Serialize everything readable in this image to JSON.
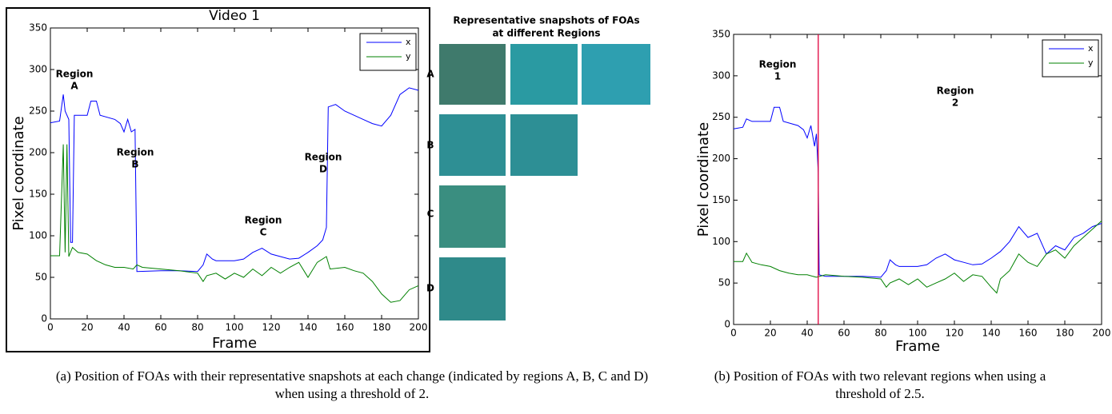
{
  "chart_data": [
    {
      "type": "line",
      "title": "Video 1",
      "xlabel": "Frame",
      "ylabel": "Pixel coordinate",
      "border": true,
      "xlim": [
        0,
        200
      ],
      "ylim": [
        0,
        350
      ],
      "xticks": [
        0,
        20,
        40,
        60,
        80,
        100,
        120,
        140,
        160,
        180,
        200
      ],
      "yticks": [
        0,
        50,
        100,
        150,
        200,
        250,
        300,
        350
      ],
      "legend": "upper right",
      "series": [
        {
          "name": "x",
          "color": "#0000ff",
          "x": [
            0,
            5,
            7,
            8,
            10,
            11,
            12,
            13,
            20,
            22,
            25,
            27,
            35,
            38,
            40,
            42,
            44,
            46,
            47,
            60,
            70,
            80,
            83,
            85,
            88,
            90,
            100,
            105,
            110,
            115,
            120,
            125,
            130,
            135,
            140,
            145,
            148,
            150,
            151,
            155,
            160,
            165,
            170,
            175,
            180,
            185,
            190,
            195,
            200
          ],
          "values": [
            236,
            238,
            270,
            250,
            240,
            92,
            92,
            245,
            245,
            262,
            262,
            245,
            240,
            235,
            225,
            240,
            225,
            228,
            57,
            58,
            58,
            57,
            65,
            78,
            72,
            70,
            70,
            72,
            80,
            85,
            78,
            75,
            72,
            73,
            80,
            88,
            95,
            110,
            255,
            258,
            250,
            245,
            240,
            235,
            232,
            245,
            270,
            278,
            275
          ]
        },
        {
          "name": "y",
          "color": "#008000",
          "x": [
            0,
            5,
            7,
            8,
            9,
            10,
            12,
            15,
            20,
            25,
            30,
            35,
            40,
            45,
            47,
            50,
            60,
            70,
            80,
            83,
            85,
            90,
            95,
            100,
            105,
            110,
            115,
            120,
            125,
            130,
            135,
            140,
            145,
            150,
            152,
            160,
            165,
            170,
            175,
            180,
            185,
            190,
            195,
            200
          ],
          "values": [
            76,
            76,
            210,
            80,
            210,
            75,
            86,
            80,
            78,
            70,
            65,
            62,
            62,
            60,
            65,
            62,
            60,
            58,
            55,
            45,
            52,
            55,
            48,
            55,
            50,
            60,
            52,
            62,
            55,
            62,
            68,
            50,
            68,
            75,
            60,
            62,
            58,
            55,
            45,
            30,
            20,
            22,
            35,
            40
          ]
        }
      ],
      "annotations": [
        [
          "Region",
          "A"
        ],
        [
          "Region",
          "B"
        ],
        [
          "Region",
          "C"
        ],
        [
          "Region",
          "D"
        ]
      ]
    },
    {
      "type": "line",
      "xlabel": "Frame",
      "ylabel": "Pixel coordinate",
      "border": false,
      "xlim": [
        0,
        200
      ],
      "ylim": [
        0,
        350
      ],
      "xticks": [
        0,
        20,
        40,
        60,
        80,
        100,
        120,
        140,
        160,
        180,
        200
      ],
      "yticks": [
        0,
        50,
        100,
        150,
        200,
        250,
        300,
        350
      ],
      "legend": "upper right",
      "vline_x": 46,
      "vline_color": "#e0003c",
      "series": [
        {
          "name": "x",
          "color": "#0000ff",
          "x": [
            0,
            5,
            7,
            10,
            15,
            20,
            22,
            25,
            27,
            35,
            38,
            40,
            42,
            44,
            45,
            46,
            46.5,
            50,
            60,
            70,
            80,
            83,
            85,
            88,
            90,
            100,
            105,
            110,
            115,
            120,
            125,
            130,
            135,
            140,
            145,
            150,
            155,
            160,
            165,
            170,
            175,
            180,
            185,
            190,
            195,
            200
          ],
          "values": [
            236,
            238,
            248,
            245,
            245,
            245,
            262,
            262,
            245,
            240,
            235,
            225,
            240,
            215,
            230,
            183,
            60,
            58,
            58,
            58,
            57,
            65,
            78,
            72,
            70,
            70,
            72,
            80,
            85,
            78,
            75,
            72,
            73,
            80,
            88,
            100,
            118,
            105,
            110,
            85,
            95,
            90,
            105,
            110,
            118,
            122
          ]
        },
        {
          "name": "y",
          "color": "#008000",
          "x": [
            0,
            5,
            7,
            10,
            15,
            20,
            25,
            30,
            35,
            40,
            45,
            50,
            60,
            70,
            80,
            83,
            85,
            90,
            95,
            100,
            105,
            110,
            115,
            120,
            125,
            130,
            135,
            140,
            143,
            145,
            150,
            155,
            160,
            165,
            170,
            175,
            180,
            185,
            190,
            195,
            200
          ],
          "values": [
            76,
            76,
            86,
            75,
            72,
            70,
            65,
            62,
            60,
            60,
            57,
            60,
            58,
            57,
            55,
            45,
            50,
            55,
            48,
            55,
            45,
            50,
            55,
            62,
            52,
            60,
            58,
            45,
            38,
            55,
            65,
            85,
            75,
            70,
            85,
            90,
            80,
            95,
            105,
            115,
            125
          ]
        }
      ],
      "annotations": [
        [
          "Region",
          "1"
        ],
        [
          "Region",
          "2"
        ]
      ]
    }
  ],
  "snapshots": {
    "title": [
      "Representative snapshots of FOAs",
      "at different Regions"
    ],
    "rows": [
      "A",
      "B",
      "C",
      "D"
    ]
  },
  "captions": [
    "(a) Position of FOAs with their representative snapshots at each change (indicated by regions A, B, C and D) when using a threshold of 2.",
    "(b) Position of FOAs with two relevant regions when using a threshold of 2.5."
  ]
}
